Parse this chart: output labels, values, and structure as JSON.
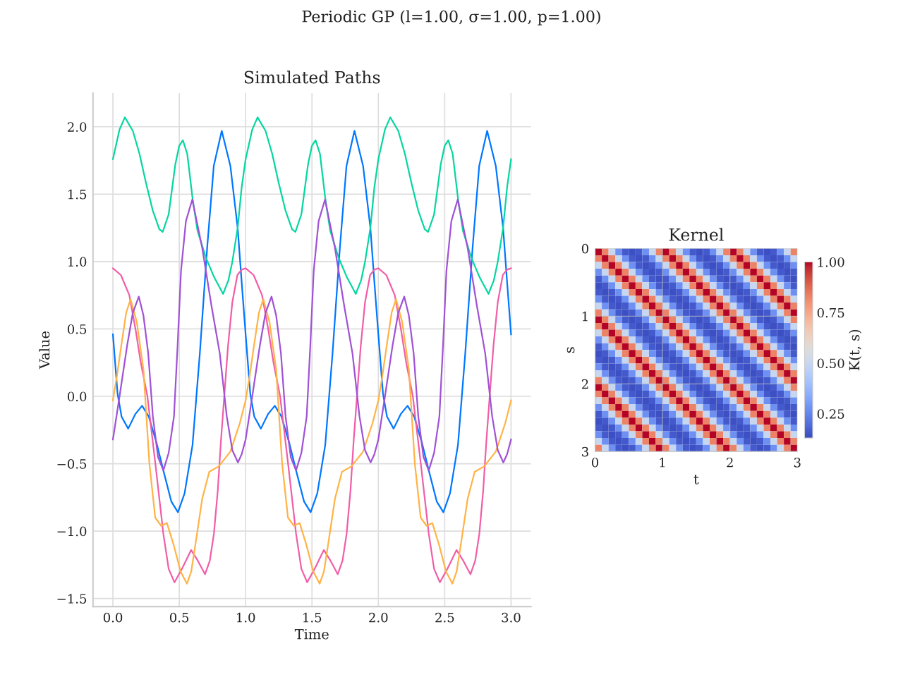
{
  "chart_data": [
    {
      "type": "line",
      "title": "Periodic GP (l=1.00, σ=1.00, p=1.00)",
      "subtitle": "Simulated Paths",
      "xlabel": "Time",
      "ylabel": "Value",
      "xlim": [
        -0.15,
        3.15
      ],
      "ylim": [
        -1.56,
        2.25
      ],
      "xticks": [
        {
          "value": 0,
          "label": "0.0"
        },
        0.5,
        {
          "value": 1,
          "label": "1.0"
        },
        1.5,
        {
          "value": 2,
          "label": "2.0"
        },
        2.5,
        {
          "value": 3,
          "label": "3.0"
        }
      ],
      "yticks": [
        {
          "value": -1.5,
          "label": "−1.5"
        },
        {
          "value": -1,
          "label": "−1.0"
        },
        {
          "value": -0.5,
          "label": "−0.5"
        },
        {
          "value": 0,
          "label": "0.0"
        },
        0.5,
        {
          "value": 1,
          "label": "1.0"
        },
        1.5,
        {
          "value": 2,
          "label": "2.0"
        }
      ],
      "grid": true,
      "series": [
        {
          "color": "#0077ff",
          "x": [
            0,
            0.035,
            0.065,
            0.115,
            0.17,
            0.22,
            0.27,
            0.33,
            0.38,
            0.44,
            0.49,
            0.54,
            0.6,
            0.655,
            0.71,
            0.76,
            0.82,
            0.885,
            0.94,
            0.97,
            1,
            1.035,
            1.065,
            1.115,
            1.17,
            1.22,
            1.27,
            1.33,
            1.38,
            1.44,
            1.49,
            1.54,
            1.6,
            1.655,
            1.71,
            1.76,
            1.82,
            1.885,
            1.94,
            1.97,
            2,
            2.035,
            2.065,
            2.115,
            2.17,
            2.22,
            2.27,
            2.33,
            2.38,
            2.44,
            2.49,
            2.54,
            2.6,
            2.655,
            2.71,
            2.76,
            2.82,
            2.885,
            2.94,
            2.97,
            3
          ],
          "values": [
            0.46,
            0.02,
            -0.15,
            -0.24,
            -0.13,
            -0.07,
            -0.15,
            -0.35,
            -0.55,
            -0.78,
            -0.86,
            -0.72,
            -0.36,
            0.32,
            1.1,
            1.71,
            1.97,
            1.71,
            1.25,
            0.85,
            0.46,
            0.02,
            -0.15,
            -0.24,
            -0.13,
            -0.07,
            -0.15,
            -0.35,
            -0.55,
            -0.78,
            -0.86,
            -0.72,
            -0.36,
            0.32,
            1.1,
            1.71,
            1.97,
            1.71,
            1.25,
            0.85,
            0.46,
            0.02,
            -0.15,
            -0.24,
            -0.13,
            -0.07,
            -0.15,
            -0.35,
            -0.55,
            -0.78,
            -0.86,
            -0.72,
            -0.36,
            0.32,
            1.1,
            1.71,
            1.97,
            1.71,
            1.25,
            0.85,
            0.46
          ]
        },
        {
          "color": "#06d6a0",
          "x": [
            0,
            0.05,
            0.09,
            0.15,
            0.2,
            0.25,
            0.3,
            0.35,
            0.375,
            0.42,
            0.47,
            0.5,
            0.527,
            0.56,
            0.6,
            0.637,
            0.7,
            0.76,
            0.83,
            0.87,
            0.9,
            0.94,
            0.97,
            1,
            1.05,
            1.09,
            1.15,
            1.2,
            1.25,
            1.3,
            1.35,
            1.375,
            1.42,
            1.47,
            1.5,
            1.527,
            1.56,
            1.6,
            1.637,
            1.7,
            1.76,
            1.83,
            1.87,
            1.9,
            1.94,
            1.97,
            2,
            2.05,
            2.09,
            2.15,
            2.2,
            2.25,
            2.3,
            2.35,
            2.375,
            2.42,
            2.47,
            2.5,
            2.527,
            2.56,
            2.6,
            2.637,
            2.7,
            2.76,
            2.83,
            2.87,
            2.9,
            2.94,
            2.97,
            3
          ],
          "values": [
            1.76,
            1.98,
            2.07,
            1.97,
            1.8,
            1.58,
            1.38,
            1.24,
            1.22,
            1.35,
            1.72,
            1.86,
            1.9,
            1.8,
            1.47,
            1.23,
            1.03,
            0.89,
            0.76,
            0.86,
            1.0,
            1.25,
            1.55,
            1.76,
            1.98,
            2.07,
            1.97,
            1.8,
            1.58,
            1.38,
            1.24,
            1.22,
            1.35,
            1.72,
            1.86,
            1.9,
            1.8,
            1.47,
            1.23,
            1.03,
            0.89,
            0.76,
            0.86,
            1.0,
            1.25,
            1.55,
            1.76,
            1.98,
            2.07,
            1.97,
            1.8,
            1.58,
            1.38,
            1.24,
            1.22,
            1.35,
            1.72,
            1.86,
            1.9,
            1.8,
            1.47,
            1.23,
            1.03,
            0.89,
            0.76,
            0.86,
            1.0,
            1.25,
            1.55,
            1.76
          ]
        },
        {
          "color": "#f15ea8",
          "x": [
            0,
            0.06,
            0.124,
            0.17,
            0.21,
            0.26,
            0.32,
            0.38,
            0.42,
            0.464,
            0.52,
            0.589,
            0.64,
            0.694,
            0.73,
            0.761,
            0.79,
            0.814,
            0.867,
            0.9,
            0.938,
            0.97,
            1,
            1.06,
            1.124,
            1.17,
            1.21,
            1.26,
            1.32,
            1.38,
            1.42,
            1.464,
            1.52,
            1.589,
            1.64,
            1.694,
            1.73,
            1.761,
            1.79,
            1.814,
            1.867,
            1.9,
            1.938,
            1.97,
            2,
            2.06,
            2.124,
            2.17,
            2.21,
            2.26,
            2.32,
            2.38,
            2.42,
            2.464,
            2.52,
            2.589,
            2.64,
            2.694,
            2.73,
            2.761,
            2.79,
            2.814,
            2.867,
            2.9,
            2.938,
            2.97,
            3
          ],
          "values": [
            0.95,
            0.9,
            0.75,
            0.5,
            0.25,
            0.0,
            -0.5,
            -1.02,
            -1.28,
            -1.38,
            -1.28,
            -1.14,
            -1.22,
            -1.32,
            -1.22,
            -1.02,
            -0.7,
            -0.33,
            0.37,
            0.7,
            0.9,
            0.94,
            0.95,
            0.9,
            0.75,
            0.5,
            0.25,
            0.0,
            -0.5,
            -1.02,
            -1.28,
            -1.38,
            -1.28,
            -1.14,
            -1.22,
            -1.32,
            -1.22,
            -1.02,
            -0.7,
            -0.33,
            0.37,
            0.7,
            0.9,
            0.94,
            0.95,
            0.9,
            0.75,
            0.5,
            0.25,
            0.0,
            -0.5,
            -1.02,
            -1.28,
            -1.38,
            -1.28,
            -1.14,
            -1.22,
            -1.32,
            -1.22,
            -1.02,
            -0.7,
            -0.33,
            0.37,
            0.7,
            0.9,
            0.94,
            0.95
          ]
        },
        {
          "color": "#ffb347",
          "x": [
            0,
            0.03,
            0.062,
            0.1,
            0.133,
            0.18,
            0.23,
            0.275,
            0.319,
            0.363,
            0.407,
            0.46,
            0.51,
            0.558,
            0.59,
            0.62,
            0.673,
            0.726,
            0.797,
            0.885,
            0.956,
            1,
            1.03,
            1.062,
            1.1,
            1.133,
            1.18,
            1.23,
            1.275,
            1.319,
            1.363,
            1.407,
            1.46,
            1.51,
            1.558,
            1.59,
            1.62,
            1.673,
            1.726,
            1.797,
            1.885,
            1.956,
            2,
            2.03,
            2.062,
            2.1,
            2.133,
            2.18,
            2.23,
            2.275,
            2.319,
            2.363,
            2.407,
            2.46,
            2.51,
            2.558,
            2.59,
            2.62,
            2.673,
            2.726,
            2.797,
            2.885,
            2.956,
            3
          ],
          "values": [
            -0.03,
            0.15,
            0.37,
            0.62,
            0.72,
            0.55,
            0.2,
            -0.5,
            -0.9,
            -0.96,
            -0.94,
            -1.11,
            -1.3,
            -1.39,
            -1.3,
            -1.11,
            -0.76,
            -0.56,
            -0.52,
            -0.41,
            -0.2,
            -0.03,
            0.15,
            0.37,
            0.62,
            0.72,
            0.55,
            0.2,
            -0.5,
            -0.9,
            -0.96,
            -0.94,
            -1.11,
            -1.3,
            -1.39,
            -1.3,
            -1.11,
            -0.76,
            -0.56,
            -0.52,
            -0.41,
            -0.2,
            -0.03,
            0.15,
            0.37,
            0.62,
            0.72,
            0.55,
            0.2,
            -0.5,
            -0.9,
            -0.96,
            -0.94,
            -1.11,
            -1.3,
            -1.39,
            -1.3,
            -1.11,
            -0.76,
            -0.56,
            -0.52,
            -0.41,
            -0.2,
            -0.03
          ]
        },
        {
          "color": "#a052d6",
          "x": [
            0,
            0.05,
            0.106,
            0.15,
            0.195,
            0.23,
            0.266,
            0.301,
            0.34,
            0.38,
            0.42,
            0.46,
            0.487,
            0.513,
            0.55,
            0.598,
            0.673,
            0.743,
            0.805,
            0.858,
            0.9,
            0.942,
            0.97,
            1,
            1.05,
            1.106,
            1.15,
            1.195,
            1.23,
            1.266,
            1.301,
            1.34,
            1.38,
            1.42,
            1.46,
            1.487,
            1.513,
            1.55,
            1.598,
            1.673,
            1.743,
            1.805,
            1.858,
            1.9,
            1.942,
            1.97,
            2,
            2.05,
            2.106,
            2.15,
            2.195,
            2.23,
            2.266,
            2.301,
            2.34,
            2.38,
            2.42,
            2.46,
            2.487,
            2.513,
            2.55,
            2.598,
            2.673,
            2.743,
            2.805,
            2.858,
            2.9,
            2.942,
            2.97,
            3
          ],
          "values": [
            -0.32,
            0.0,
            0.37,
            0.62,
            0.74,
            0.6,
            0.32,
            -0.15,
            -0.45,
            -0.55,
            -0.42,
            -0.15,
            0.37,
            0.93,
            1.3,
            1.46,
            1.1,
            0.67,
            0.32,
            -0.15,
            -0.4,
            -0.49,
            -0.43,
            -0.32,
            0.0,
            0.37,
            0.62,
            0.74,
            0.6,
            0.32,
            -0.15,
            -0.45,
            -0.55,
            -0.42,
            -0.15,
            0.37,
            0.93,
            1.3,
            1.46,
            1.1,
            0.67,
            0.32,
            -0.15,
            -0.4,
            -0.49,
            -0.43,
            -0.32,
            0.0,
            0.37,
            0.62,
            0.74,
            0.6,
            0.32,
            -0.15,
            -0.45,
            -0.55,
            -0.42,
            -0.15,
            0.37,
            0.93,
            1.3,
            1.46,
            1.1,
            0.67,
            0.32,
            -0.15,
            -0.4,
            -0.49,
            -0.43,
            -0.32
          ]
        }
      ]
    },
    {
      "type": "heatmap",
      "title": "Kernel",
      "xlabel": "t",
      "ylabel": "s",
      "clabel": "K(t, s)",
      "x": [
        0.05,
        0.15,
        0.25,
        0.35,
        0.45,
        0.55,
        0.65,
        0.75,
        0.85,
        0.95,
        1.05,
        1.15,
        1.25,
        1.35,
        1.45,
        1.55,
        1.65,
        1.75,
        1.85,
        1.95,
        2.05,
        2.15,
        2.25,
        2.35,
        2.45,
        2.55,
        2.65,
        2.75,
        2.85,
        2.95
      ],
      "y": [
        0.05,
        0.15,
        0.25,
        0.35,
        0.45,
        0.55,
        0.65,
        0.75,
        0.85,
        0.95,
        1.05,
        1.15,
        1.25,
        1.35,
        1.45,
        1.55,
        1.65,
        1.75,
        1.85,
        1.95,
        2.05,
        2.15,
        2.25,
        2.35,
        2.45,
        2.55,
        2.65,
        2.75,
        2.85,
        2.95
      ],
      "xlim": [
        0,
        3
      ],
      "ylim": [
        3,
        0
      ],
      "xticks": [
        0,
        1,
        2,
        3
      ],
      "yticks": [
        0,
        1,
        2,
        3
      ],
      "clim": [
        0.13,
        1
      ],
      "cticks": [
        0.25,
        {
          "value": 0.5,
          "label": "0.50"
        },
        0.75,
        {
          "value": 1,
          "label": "1.00"
        }
      ],
      "grid": true,
      "cells": [
        [
          1,
          0.83,
          0.5,
          0.27,
          0.16,
          0.14,
          0.16,
          0.27,
          0.5,
          0.83,
          1,
          0.83,
          0.5,
          0.27,
          0.16,
          0.14,
          0.16,
          0.27,
          0.5,
          0.83,
          1,
          0.83,
          0.5,
          0.27,
          0.16,
          0.14,
          0.16,
          0.27,
          0.5,
          0.83
        ],
        [
          0.83,
          1,
          0.83,
          0.5,
          0.27,
          0.16,
          0.14,
          0.16,
          0.27,
          0.5,
          0.83,
          1,
          0.83,
          0.5,
          0.27,
          0.16,
          0.14,
          0.16,
          0.27,
          0.5,
          0.83,
          1,
          0.83,
          0.5,
          0.27,
          0.16,
          0.14,
          0.16,
          0.27,
          0.5
        ],
        [
          0.5,
          0.83,
          1,
          0.83,
          0.5,
          0.27,
          0.16,
          0.14,
          0.16,
          0.27,
          0.5,
          0.83,
          1,
          0.83,
          0.5,
          0.27,
          0.16,
          0.14,
          0.16,
          0.27,
          0.5,
          0.83,
          1,
          0.83,
          0.5,
          0.27,
          0.16,
          0.14,
          0.16,
          0.27
        ],
        [
          0.27,
          0.5,
          0.83,
          1,
          0.83,
          0.5,
          0.27,
          0.16,
          0.14,
          0.16,
          0.27,
          0.5,
          0.83,
          1,
          0.83,
          0.5,
          0.27,
          0.16,
          0.14,
          0.16,
          0.27,
          0.5,
          0.83,
          1,
          0.83,
          0.5,
          0.27,
          0.16,
          0.14,
          0.16
        ],
        [
          0.16,
          0.27,
          0.5,
          0.83,
          1,
          0.83,
          0.5,
          0.27,
          0.16,
          0.14,
          0.16,
          0.27,
          0.5,
          0.83,
          1,
          0.83,
          0.5,
          0.27,
          0.16,
          0.14,
          0.16,
          0.27,
          0.5,
          0.83,
          1,
          0.83,
          0.5,
          0.27,
          0.16,
          0.14
        ],
        [
          0.14,
          0.16,
          0.27,
          0.5,
          0.83,
          1,
          0.83,
          0.5,
          0.27,
          0.16,
          0.14,
          0.16,
          0.27,
          0.5,
          0.83,
          1,
          0.83,
          0.5,
          0.27,
          0.16,
          0.14,
          0.16,
          0.27,
          0.5,
          0.83,
          1,
          0.83,
          0.5,
          0.27,
          0.16
        ],
        [
          0.16,
          0.14,
          0.16,
          0.27,
          0.5,
          0.83,
          1,
          0.83,
          0.5,
          0.27,
          0.16,
          0.14,
          0.16,
          0.27,
          0.5,
          0.83,
          1,
          0.83,
          0.5,
          0.27,
          0.16,
          0.14,
          0.16,
          0.27,
          0.5,
          0.83,
          1,
          0.83,
          0.5,
          0.27
        ],
        [
          0.27,
          0.16,
          0.14,
          0.16,
          0.27,
          0.5,
          0.83,
          1,
          0.83,
          0.5,
          0.27,
          0.16,
          0.14,
          0.16,
          0.27,
          0.5,
          0.83,
          1,
          0.83,
          0.5,
          0.27,
          0.16,
          0.14,
          0.16,
          0.27,
          0.5,
          0.83,
          1,
          0.83,
          0.5
        ],
        [
          0.5,
          0.27,
          0.16,
          0.14,
          0.16,
          0.27,
          0.5,
          0.83,
          1,
          0.83,
          0.5,
          0.27,
          0.16,
          0.14,
          0.16,
          0.27,
          0.5,
          0.83,
          1,
          0.83,
          0.5,
          0.27,
          0.16,
          0.14,
          0.16,
          0.27,
          0.5,
          0.83,
          1,
          0.83
        ],
        [
          0.83,
          0.5,
          0.27,
          0.16,
          0.14,
          0.16,
          0.27,
          0.5,
          0.83,
          1,
          0.83,
          0.5,
          0.27,
          0.16,
          0.14,
          0.16,
          0.27,
          0.5,
          0.83,
          1,
          0.83,
          0.5,
          0.27,
          0.16,
          0.14,
          0.16,
          0.27,
          0.5,
          0.83,
          1
        ],
        [
          1,
          0.83,
          0.5,
          0.27,
          0.16,
          0.14,
          0.16,
          0.27,
          0.5,
          0.83,
          1,
          0.83,
          0.5,
          0.27,
          0.16,
          0.14,
          0.16,
          0.27,
          0.5,
          0.83,
          1,
          0.83,
          0.5,
          0.27,
          0.16,
          0.14,
          0.16,
          0.27,
          0.5,
          0.83
        ],
        [
          0.83,
          1,
          0.83,
          0.5,
          0.27,
          0.16,
          0.14,
          0.16,
          0.27,
          0.5,
          0.83,
          1,
          0.83,
          0.5,
          0.27,
          0.16,
          0.14,
          0.16,
          0.27,
          0.5,
          0.83,
          1,
          0.83,
          0.5,
          0.27,
          0.16,
          0.14,
          0.16,
          0.27,
          0.5
        ],
        [
          0.5,
          0.83,
          1,
          0.83,
          0.5,
          0.27,
          0.16,
          0.14,
          0.16,
          0.27,
          0.5,
          0.83,
          1,
          0.83,
          0.5,
          0.27,
          0.16,
          0.14,
          0.16,
          0.27,
          0.5,
          0.83,
          1,
          0.83,
          0.5,
          0.27,
          0.16,
          0.14,
          0.16,
          0.27
        ],
        [
          0.27,
          0.5,
          0.83,
          1,
          0.83,
          0.5,
          0.27,
          0.16,
          0.14,
          0.16,
          0.27,
          0.5,
          0.83,
          1,
          0.83,
          0.5,
          0.27,
          0.16,
          0.14,
          0.16,
          0.27,
          0.5,
          0.83,
          1,
          0.83,
          0.5,
          0.27,
          0.16,
          0.14,
          0.16
        ],
        [
          0.16,
          0.27,
          0.5,
          0.83,
          1,
          0.83,
          0.5,
          0.27,
          0.16,
          0.14,
          0.16,
          0.27,
          0.5,
          0.83,
          1,
          0.83,
          0.5,
          0.27,
          0.16,
          0.14,
          0.16,
          0.27,
          0.5,
          0.83,
          1,
          0.83,
          0.5,
          0.27,
          0.16,
          0.14
        ],
        [
          0.14,
          0.16,
          0.27,
          0.5,
          0.83,
          1,
          0.83,
          0.5,
          0.27,
          0.16,
          0.14,
          0.16,
          0.27,
          0.5,
          0.83,
          1,
          0.83,
          0.5,
          0.27,
          0.16,
          0.14,
          0.16,
          0.27,
          0.5,
          0.83,
          1,
          0.83,
          0.5,
          0.27,
          0.16
        ],
        [
          0.16,
          0.14,
          0.16,
          0.27,
          0.5,
          0.83,
          1,
          0.83,
          0.5,
          0.27,
          0.16,
          0.14,
          0.16,
          0.27,
          0.5,
          0.83,
          1,
          0.83,
          0.5,
          0.27,
          0.16,
          0.14,
          0.16,
          0.27,
          0.5,
          0.83,
          1,
          0.83,
          0.5,
          0.27
        ],
        [
          0.27,
          0.16,
          0.14,
          0.16,
          0.27,
          0.5,
          0.83,
          1,
          0.83,
          0.5,
          0.27,
          0.16,
          0.14,
          0.16,
          0.27,
          0.5,
          0.83,
          1,
          0.83,
          0.5,
          0.27,
          0.16,
          0.14,
          0.16,
          0.27,
          0.5,
          0.83,
          1,
          0.83,
          0.5
        ],
        [
          0.5,
          0.27,
          0.16,
          0.14,
          0.16,
          0.27,
          0.5,
          0.83,
          1,
          0.83,
          0.5,
          0.27,
          0.16,
          0.14,
          0.16,
          0.27,
          0.5,
          0.83,
          1,
          0.83,
          0.5,
          0.27,
          0.16,
          0.14,
          0.16,
          0.27,
          0.5,
          0.83,
          1,
          0.83
        ],
        [
          0.83,
          0.5,
          0.27,
          0.16,
          0.14,
          0.16,
          0.27,
          0.5,
          0.83,
          1,
          0.83,
          0.5,
          0.27,
          0.16,
          0.14,
          0.16,
          0.27,
          0.5,
          0.83,
          1,
          0.83,
          0.5,
          0.27,
          0.16,
          0.14,
          0.16,
          0.27,
          0.5,
          0.83,
          1
        ],
        [
          1,
          0.83,
          0.5,
          0.27,
          0.16,
          0.14,
          0.16,
          0.27,
          0.5,
          0.83,
          1,
          0.83,
          0.5,
          0.27,
          0.16,
          0.14,
          0.16,
          0.27,
          0.5,
          0.83,
          1,
          0.83,
          0.5,
          0.27,
          0.16,
          0.14,
          0.16,
          0.27,
          0.5,
          0.83
        ],
        [
          0.83,
          1,
          0.83,
          0.5,
          0.27,
          0.16,
          0.14,
          0.16,
          0.27,
          0.5,
          0.83,
          1,
          0.83,
          0.5,
          0.27,
          0.16,
          0.14,
          0.16,
          0.27,
          0.5,
          0.83,
          1,
          0.83,
          0.5,
          0.27,
          0.16,
          0.14,
          0.16,
          0.27,
          0.5
        ],
        [
          0.5,
          0.83,
          1,
          0.83,
          0.5,
          0.27,
          0.16,
          0.14,
          0.16,
          0.27,
          0.5,
          0.83,
          1,
          0.83,
          0.5,
          0.27,
          0.16,
          0.14,
          0.16,
          0.27,
          0.5,
          0.83,
          1,
          0.83,
          0.5,
          0.27,
          0.16,
          0.14,
          0.16,
          0.27
        ],
        [
          0.27,
          0.5,
          0.83,
          1,
          0.83,
          0.5,
          0.27,
          0.16,
          0.14,
          0.16,
          0.27,
          0.5,
          0.83,
          1,
          0.83,
          0.5,
          0.27,
          0.16,
          0.14,
          0.16,
          0.27,
          0.5,
          0.83,
          1,
          0.83,
          0.5,
          0.27,
          0.16,
          0.14,
          0.16
        ],
        [
          0.16,
          0.27,
          0.5,
          0.83,
          1,
          0.83,
          0.5,
          0.27,
          0.16,
          0.14,
          0.16,
          0.27,
          0.5,
          0.83,
          1,
          0.83,
          0.5,
          0.27,
          0.16,
          0.14,
          0.16,
          0.27,
          0.5,
          0.83,
          1,
          0.83,
          0.5,
          0.27,
          0.16,
          0.14
        ],
        [
          0.14,
          0.16,
          0.27,
          0.5,
          0.83,
          1,
          0.83,
          0.5,
          0.27,
          0.16,
          0.14,
          0.16,
          0.27,
          0.5,
          0.83,
          1,
          0.83,
          0.5,
          0.27,
          0.16,
          0.14,
          0.16,
          0.27,
          0.5,
          0.83,
          1,
          0.83,
          0.5,
          0.27,
          0.16
        ],
        [
          0.16,
          0.14,
          0.16,
          0.27,
          0.5,
          0.83,
          1,
          0.83,
          0.5,
          0.27,
          0.16,
          0.14,
          0.16,
          0.27,
          0.5,
          0.83,
          1,
          0.83,
          0.5,
          0.27,
          0.16,
          0.14,
          0.16,
          0.27,
          0.5,
          0.83,
          1,
          0.83,
          0.5,
          0.27
        ],
        [
          0.27,
          0.16,
          0.14,
          0.16,
          0.27,
          0.5,
          0.83,
          1,
          0.83,
          0.5,
          0.27,
          0.16,
          0.14,
          0.16,
          0.27,
          0.5,
          0.83,
          1,
          0.83,
          0.5,
          0.27,
          0.16,
          0.14,
          0.16,
          0.27,
          0.5,
          0.83,
          1,
          0.83,
          0.5
        ],
        [
          0.5,
          0.27,
          0.16,
          0.14,
          0.16,
          0.27,
          0.5,
          0.83,
          1,
          0.83,
          0.5,
          0.27,
          0.16,
          0.14,
          0.16,
          0.27,
          0.5,
          0.83,
          1,
          0.83,
          0.5,
          0.27,
          0.16,
          0.14,
          0.16,
          0.27,
          0.5,
          0.83,
          1,
          0.83
        ],
        [
          0.83,
          0.5,
          0.27,
          0.16,
          0.14,
          0.16,
          0.27,
          0.5,
          0.83,
          1,
          0.83,
          0.5,
          0.27,
          0.16,
          0.14,
          0.16,
          0.27,
          0.5,
          0.83,
          1,
          0.83,
          0.5,
          0.27,
          0.16,
          0.14,
          0.16,
          0.27,
          0.5,
          0.83,
          1
        ]
      ]
    }
  ]
}
